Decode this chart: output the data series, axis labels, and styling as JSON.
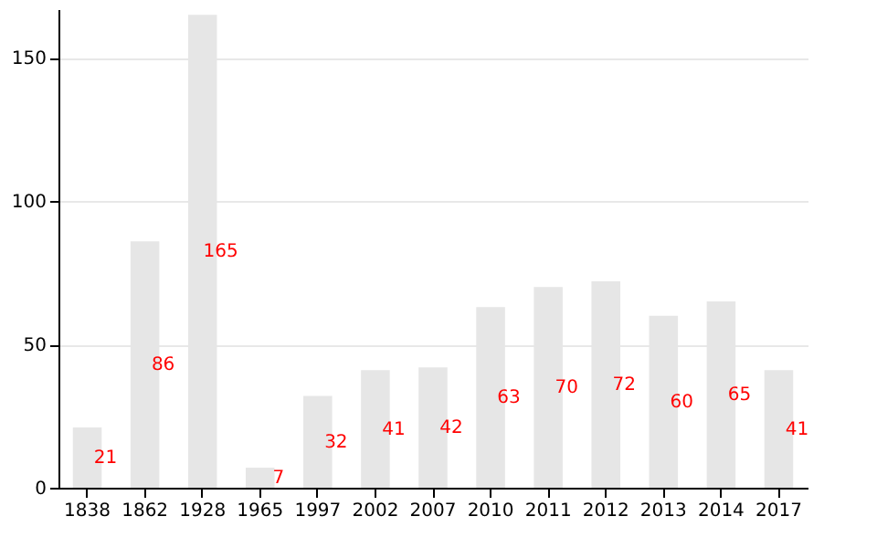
{
  "chart_data": {
    "type": "bar",
    "categories": [
      "1838",
      "1862",
      "1928",
      "1965",
      "1997",
      "2002",
      "2007",
      "2010",
      "2011",
      "2012",
      "2013",
      "2014",
      "2017"
    ],
    "values": [
      21,
      86,
      165,
      7,
      32,
      41,
      42,
      63,
      70,
      72,
      60,
      65,
      41
    ],
    "color": "#e6e6e6",
    "ylim": [
      0,
      167
    ],
    "yticks": [
      0,
      50,
      100,
      150
    ],
    "grid": "y",
    "data_labels": true
  }
}
